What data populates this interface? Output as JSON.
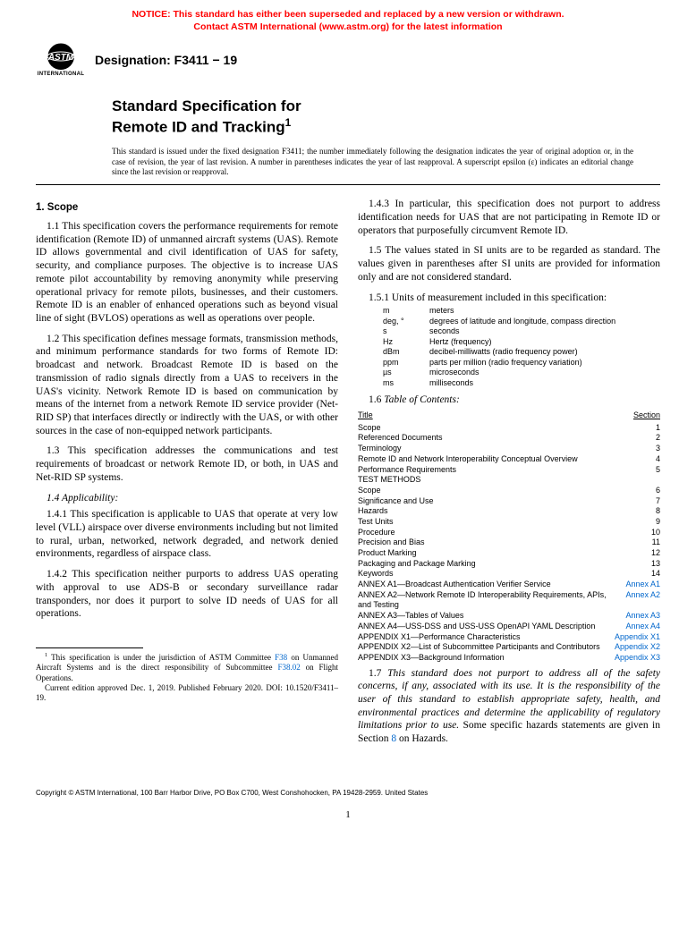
{
  "notice": {
    "line1": "NOTICE: This standard has either been superseded and replaced by a new version or withdrawn.",
    "line2": "Contact ASTM International (www.astm.org) for the latest information",
    "color": "#ff0000",
    "fontsize": 10.5
  },
  "logo": {
    "label": "INTERNATIONAL",
    "fill": "#000000"
  },
  "designation": {
    "prefix": "Designation: ",
    "code": "F3411 − 19"
  },
  "title": {
    "line1": "Standard Specification for",
    "line2": "Remote ID and Tracking",
    "superscript": "1"
  },
  "issuance": "This standard is issued under the fixed designation F3411; the number immediately following the designation indicates the year of original adoption or, in the case of revision, the year of last revision. A number in parentheses indicates the year of last reapproval. A superscript epsilon (ε) indicates an editorial change since the last revision or reapproval.",
  "section1": {
    "heading": "1. Scope",
    "p1_1": "1.1 This specification covers the performance requirements for remote identification (Remote ID) of unmanned aircraft systems (UAS). Remote ID allows governmental and civil identification of UAS for safety, security, and compliance purposes. The objective is to increase UAS remote pilot accountability by removing anonymity while preserving operational privacy for remote pilots, businesses, and their customers. Remote ID is an enabler of enhanced operations such as beyond visual line of sight (BVLOS) operations as well as operations over people.",
    "p1_2": "1.2 This specification defines message formats, transmission methods, and minimum performance standards for two forms of Remote ID: broadcast and network. Broadcast Remote ID is based on the transmission of radio signals directly from a UAS to receivers in the UAS's vicinity. Network Remote ID is based on communication by means of the internet from a network Remote ID service provider (Net-RID SP) that interfaces directly or indirectly with the UAS, or with other sources in the case of non-equipped network participants.",
    "p1_3": "1.3 This specification addresses the communications and test requirements of broadcast or network Remote ID, or both, in UAS and Net-RID SP systems.",
    "p1_4_head": "1.4 Applicability:",
    "p1_4_1": "1.4.1 This specification is applicable to UAS that operate at very low level (VLL) airspace over diverse environments including but not limited to rural, urban, networked, network degraded, and network denied environments, regardless of airspace class.",
    "p1_4_2": "1.4.2 This specification neither purports to address UAS operating with approval to use ADS-B or secondary surveillance radar transponders, nor does it purport to solve ID needs of UAS for all operations.",
    "p1_4_3": "1.4.3 In particular, this specification does not purport to address identification needs for UAS that are not participating in Remote ID or operators that purposefully circumvent Remote ID.",
    "p1_5": "1.5 The values stated in SI units are to be regarded as standard. The values given in parentheses after SI units are provided for information only and are not considered standard.",
    "p1_5_1": "1.5.1 Units of measurement included in this specification:",
    "units": [
      {
        "sym": "m",
        "desc": "meters"
      },
      {
        "sym": "deg, °",
        "desc": "degrees of latitude and longitude, compass direction"
      },
      {
        "sym": "s",
        "desc": "seconds"
      },
      {
        "sym": "Hz",
        "desc": "Hertz (frequency)"
      },
      {
        "sym": "dBm",
        "desc": "decibel-milliwatts (radio frequency power)"
      },
      {
        "sym": "ppm",
        "desc": "parts per million (radio frequency variation)"
      },
      {
        "sym": "µs",
        "desc": "microseconds"
      },
      {
        "sym": "ms",
        "desc": "milliseconds"
      }
    ],
    "p1_6_head": "1.6 Table of Contents:",
    "toc_header_title": "Title",
    "toc_header_section": "Section",
    "toc": [
      {
        "title": "Scope",
        "section": "1",
        "link": false
      },
      {
        "title": "Referenced Documents",
        "section": "2",
        "link": false
      },
      {
        "title": "Terminology",
        "section": "3",
        "link": false
      },
      {
        "title": "Remote ID and Network Interoperability Conceptual Overview",
        "section": "4",
        "link": false
      },
      {
        "title": "Performance Requirements",
        "section": "5",
        "link": false
      },
      {
        "title": "TEST METHODS",
        "section": "",
        "link": false
      },
      {
        "title": "Scope",
        "section": "6",
        "link": false
      },
      {
        "title": "Significance and Use",
        "section": "7",
        "link": false
      },
      {
        "title": "Hazards",
        "section": "8",
        "link": false
      },
      {
        "title": "Test Units",
        "section": "9",
        "link": false
      },
      {
        "title": "Procedure",
        "section": "10",
        "link": false
      },
      {
        "title": "Precision and Bias",
        "section": "11",
        "link": false
      },
      {
        "title": "Product Marking",
        "section": "12",
        "link": false
      },
      {
        "title": "Packaging and Package Marking",
        "section": "13",
        "link": false
      },
      {
        "title": "Keywords",
        "section": "14",
        "link": false
      },
      {
        "title": "ANNEX A1—Broadcast Authentication Verifier Service",
        "section": "Annex A1",
        "link": true
      },
      {
        "title": "ANNEX A2—Network Remote ID Interoperability Requirements, APIs, and Testing",
        "section": "Annex A2",
        "link": true
      },
      {
        "title": "ANNEX A3—Tables of Values",
        "section": "Annex A3",
        "link": true
      },
      {
        "title": "ANNEX A4—USS-DSS and USS-USS OpenAPI YAML Description",
        "section": "Annex A4",
        "link": true
      },
      {
        "title": "APPENDIX X1—Performance Characteristics",
        "section": "Appendix X1",
        "link": true
      },
      {
        "title": "APPENDIX X2—List of Subcommittee Participants and Contributors",
        "section": "Appendix X2",
        "link": true
      },
      {
        "title": "APPENDIX X3—Background Information",
        "section": "Appendix X3",
        "link": true
      }
    ],
    "p1_7_pre": "1.7 ",
    "p1_7_italic": "This standard does not purport to address all of the safety concerns, if any, associated with its use. It is the responsibility of the user of this standard to establish appropriate safety, health, and environmental practices and determine the applicability of regulatory limitations prior to use.",
    "p1_7_post1": " Some specific hazards statements are given in Section ",
    "p1_7_link": "8",
    "p1_7_post2": " on Hazards."
  },
  "footnote": {
    "sup": "1",
    "t1": " This specification is under the jurisdiction of ASTM Committee ",
    "link1": "F38",
    "t2": " on Unmanned Aircraft Systems and is the direct responsibility of Subcommittee ",
    "link2": "F38.02",
    "t3": " on Flight Operations.",
    "t4": "Current edition approved Dec. 1, 2019. Published February 2020. DOI: 10.1520/F3411–19."
  },
  "copyright": "Copyright © ASTM International, 100 Barr Harbor Drive, PO Box C700, West Conshohocken, PA 19428-2959. United States",
  "pagenum": "1",
  "colors": {
    "link": "#0066cc",
    "text": "#000000",
    "background": "#ffffff"
  }
}
